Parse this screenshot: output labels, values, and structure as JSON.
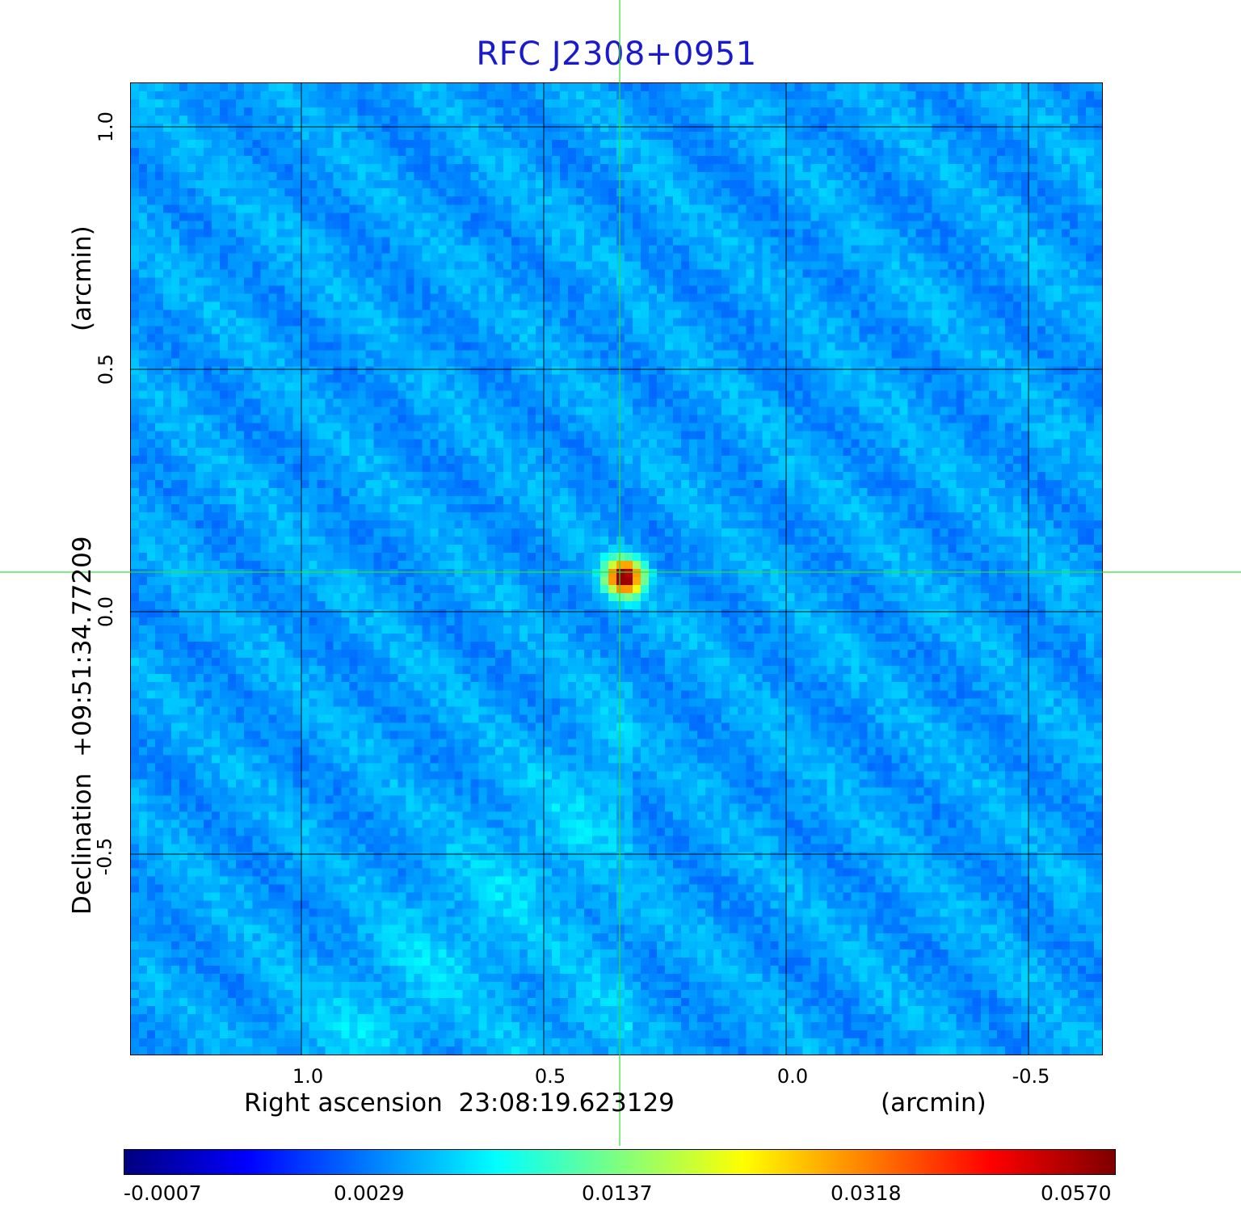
{
  "title": "RFC J2308+0951",
  "axes": {
    "x_label": "Right ascension  23:08:19.623129",
    "x_unit": "(arcmin)",
    "y_label": "Declination  +09:51:34.77209",
    "y_unit": "(arcmin)",
    "x_ticks": [
      "1.0",
      "0.5",
      "0.0",
      "-0.5"
    ],
    "y_ticks": [
      "1.0",
      "0.5",
      "0.0",
      "-0.5"
    ],
    "grid": true,
    "x_direction": "decreasing to the right"
  },
  "colorbar": {
    "colormap": "jet",
    "tick_labels": [
      "-0.0007",
      "0.0029",
      "0.0137",
      "0.0318",
      "0.0570"
    ]
  },
  "crosshair": {
    "color": "#33dd33"
  },
  "colors": {
    "title": "#1a1acc",
    "grid": "#000000",
    "crosshair": "#33dd33",
    "background_field": "#1e50ff"
  }
}
